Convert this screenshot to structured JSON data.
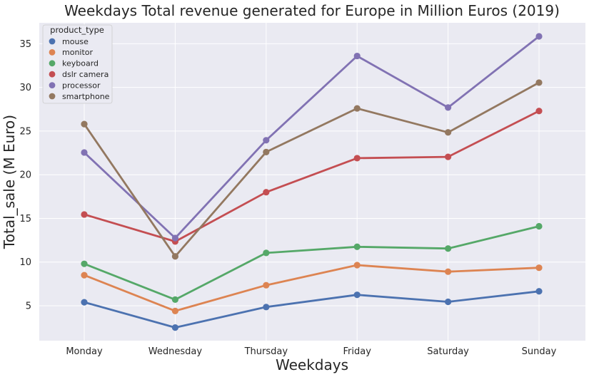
{
  "chart_data": {
    "type": "line",
    "title": "Weekdays Total revenue generated for Europe in Million Euros (2019)",
    "xlabel": "Weekdays",
    "ylabel": "Total_sale (M Euro)",
    "categories": [
      "Monday",
      "Wednesday",
      "Thursday",
      "Friday",
      "Saturday",
      "Sunday"
    ],
    "ylim": [
      1.0,
      37.4
    ],
    "yticks": [
      5,
      10,
      15,
      20,
      25,
      30,
      35
    ],
    "grid": true,
    "legend": {
      "title": "product_type",
      "placement": "top-left"
    },
    "series": [
      {
        "name": "mouse",
        "color": "#4c72b0",
        "values": [
          5.4,
          2.5,
          4.85,
          6.25,
          5.45,
          6.65
        ]
      },
      {
        "name": "monitor",
        "color": "#dd8452",
        "values": [
          8.5,
          4.4,
          7.35,
          9.65,
          8.9,
          9.35
        ]
      },
      {
        "name": "keyboard",
        "color": "#55a868",
        "values": [
          9.8,
          5.7,
          11.05,
          11.75,
          11.55,
          14.1
        ]
      },
      {
        "name": "dslr camera",
        "color": "#c44e52",
        "values": [
          15.45,
          12.35,
          18.0,
          21.9,
          22.05,
          27.3
        ]
      },
      {
        "name": "processor",
        "color": "#8172b3",
        "values": [
          22.55,
          12.75,
          23.95,
          33.6,
          27.7,
          35.85
        ]
      },
      {
        "name": "smartphone",
        "color": "#937860",
        "values": [
          25.8,
          10.65,
          22.6,
          27.6,
          24.85,
          30.55
        ]
      }
    ]
  }
}
